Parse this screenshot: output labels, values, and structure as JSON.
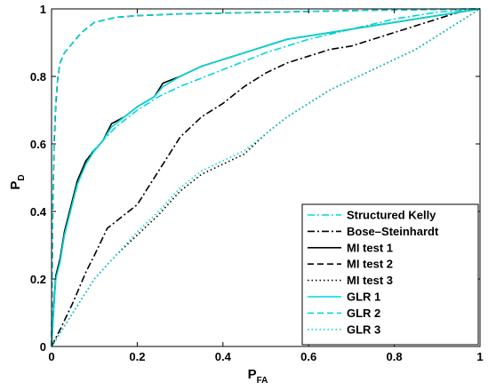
{
  "chart_data": {
    "type": "line",
    "title": "",
    "xlabel": {
      "main": "P",
      "sub": "FA"
    },
    "ylabel": {
      "main": "P",
      "sub": "D"
    },
    "xlim": [
      0,
      1
    ],
    "ylim": [
      0,
      1
    ],
    "xticks": [
      "0",
      "0.2",
      "0.4",
      "0.6",
      "0.8",
      "1"
    ],
    "yticks": [
      "0",
      "0.2",
      "0.4",
      "0.6",
      "0.8",
      "1"
    ],
    "grid": false,
    "legend_position": "bottom-right",
    "series": [
      {
        "name": "Structured Kelly",
        "color": "#00d8d8",
        "dash": "dashdot",
        "points": [
          [
            0,
            0
          ],
          [
            0.005,
            0.1
          ],
          [
            0.01,
            0.2
          ],
          [
            0.02,
            0.26
          ],
          [
            0.03,
            0.33
          ],
          [
            0.05,
            0.43
          ],
          [
            0.07,
            0.52
          ],
          [
            0.09,
            0.57
          ],
          [
            0.12,
            0.61
          ],
          [
            0.15,
            0.65
          ],
          [
            0.2,
            0.7
          ],
          [
            0.25,
            0.74
          ],
          [
            0.3,
            0.77
          ],
          [
            0.4,
            0.82
          ],
          [
            0.5,
            0.87
          ],
          [
            0.6,
            0.91
          ],
          [
            0.7,
            0.94
          ],
          [
            0.8,
            0.97
          ],
          [
            0.9,
            0.99
          ],
          [
            1,
            1
          ]
        ]
      },
      {
        "name": "Bose–Steinhardt",
        "color": "#000000",
        "dash": "dashdot",
        "points": [
          [
            0,
            0
          ],
          [
            0.02,
            0.05
          ],
          [
            0.05,
            0.13
          ],
          [
            0.08,
            0.22
          ],
          [
            0.1,
            0.27
          ],
          [
            0.13,
            0.35
          ],
          [
            0.17,
            0.39
          ],
          [
            0.2,
            0.42
          ],
          [
            0.22,
            0.46
          ],
          [
            0.25,
            0.52
          ],
          [
            0.28,
            0.58
          ],
          [
            0.3,
            0.62
          ],
          [
            0.35,
            0.68
          ],
          [
            0.4,
            0.72
          ],
          [
            0.45,
            0.77
          ],
          [
            0.5,
            0.81
          ],
          [
            0.55,
            0.84
          ],
          [
            0.6,
            0.86
          ],
          [
            0.65,
            0.88
          ],
          [
            0.7,
            0.89
          ],
          [
            0.75,
            0.91
          ],
          [
            0.8,
            0.93
          ],
          [
            0.85,
            0.95
          ],
          [
            0.9,
            0.97
          ],
          [
            0.95,
            0.99
          ],
          [
            1,
            1
          ]
        ]
      },
      {
        "name": "MI test 1",
        "color": "#000000",
        "dash": "solid",
        "points": [
          [
            0,
            0
          ],
          [
            0.005,
            0.12
          ],
          [
            0.01,
            0.21
          ],
          [
            0.02,
            0.26
          ],
          [
            0.03,
            0.34
          ],
          [
            0.04,
            0.39
          ],
          [
            0.05,
            0.44
          ],
          [
            0.06,
            0.49
          ],
          [
            0.08,
            0.55
          ],
          [
            0.1,
            0.58
          ],
          [
            0.12,
            0.61
          ],
          [
            0.14,
            0.66
          ],
          [
            0.17,
            0.68
          ],
          [
            0.2,
            0.71
          ],
          [
            0.24,
            0.74
          ],
          [
            0.26,
            0.78
          ],
          [
            0.3,
            0.8
          ],
          [
            0.35,
            0.83
          ],
          [
            0.4,
            0.85
          ],
          [
            0.45,
            0.87
          ],
          [
            0.5,
            0.89
          ],
          [
            0.55,
            0.91
          ],
          [
            0.6,
            0.92
          ],
          [
            0.7,
            0.94
          ],
          [
            0.8,
            0.96
          ],
          [
            0.9,
            0.98
          ],
          [
            1,
            1
          ]
        ]
      },
      {
        "name": "MI test 2",
        "color": "#000000",
        "dash": "dashed",
        "points": [
          [
            0,
            0
          ],
          [
            0.003,
            0.4
          ],
          [
            0.006,
            0.6
          ],
          [
            0.01,
            0.72
          ],
          [
            0.015,
            0.8
          ],
          [
            0.02,
            0.84
          ],
          [
            0.03,
            0.87
          ],
          [
            0.05,
            0.9
          ],
          [
            0.07,
            0.93
          ],
          [
            0.1,
            0.96
          ],
          [
            0.15,
            0.975
          ],
          [
            0.2,
            0.98
          ],
          [
            0.3,
            0.985
          ],
          [
            0.5,
            0.99
          ],
          [
            0.7,
            0.995
          ],
          [
            1,
            1
          ]
        ]
      },
      {
        "name": "MI test 3",
        "color": "#000000",
        "dash": "dotted",
        "points": [
          [
            0,
            0
          ],
          [
            0.03,
            0.06
          ],
          [
            0.06,
            0.12
          ],
          [
            0.1,
            0.2
          ],
          [
            0.15,
            0.27
          ],
          [
            0.2,
            0.33
          ],
          [
            0.25,
            0.39
          ],
          [
            0.3,
            0.46
          ],
          [
            0.35,
            0.51
          ],
          [
            0.4,
            0.54
          ],
          [
            0.45,
            0.57
          ],
          [
            0.5,
            0.63
          ],
          [
            0.55,
            0.68
          ],
          [
            0.6,
            0.72
          ],
          [
            0.65,
            0.76
          ],
          [
            0.7,
            0.79
          ],
          [
            0.75,
            0.82
          ],
          [
            0.8,
            0.85
          ],
          [
            0.85,
            0.88
          ],
          [
            0.9,
            0.92
          ],
          [
            0.95,
            0.96
          ],
          [
            1,
            1
          ]
        ]
      },
      {
        "name": "GLR 1",
        "color": "#00d8d8",
        "dash": "solid",
        "points": [
          [
            0,
            0
          ],
          [
            0.005,
            0.11
          ],
          [
            0.01,
            0.2
          ],
          [
            0.02,
            0.25
          ],
          [
            0.03,
            0.33
          ],
          [
            0.04,
            0.38
          ],
          [
            0.05,
            0.43
          ],
          [
            0.06,
            0.48
          ],
          [
            0.08,
            0.54
          ],
          [
            0.1,
            0.58
          ],
          [
            0.12,
            0.61
          ],
          [
            0.14,
            0.65
          ],
          [
            0.17,
            0.68
          ],
          [
            0.2,
            0.71
          ],
          [
            0.24,
            0.74
          ],
          [
            0.26,
            0.77
          ],
          [
            0.3,
            0.8
          ],
          [
            0.35,
            0.83
          ],
          [
            0.4,
            0.85
          ],
          [
            0.45,
            0.87
          ],
          [
            0.5,
            0.89
          ],
          [
            0.55,
            0.91
          ],
          [
            0.6,
            0.92
          ],
          [
            0.7,
            0.94
          ],
          [
            0.8,
            0.96
          ],
          [
            0.9,
            0.98
          ],
          [
            1,
            1
          ]
        ]
      },
      {
        "name": "GLR 2",
        "color": "#00d8d8",
        "dash": "dashed",
        "points": [
          [
            0,
            0
          ],
          [
            0.003,
            0.42
          ],
          [
            0.006,
            0.62
          ],
          [
            0.01,
            0.73
          ],
          [
            0.015,
            0.8
          ],
          [
            0.02,
            0.84
          ],
          [
            0.03,
            0.87
          ],
          [
            0.05,
            0.9
          ],
          [
            0.07,
            0.93
          ],
          [
            0.1,
            0.96
          ],
          [
            0.15,
            0.975
          ],
          [
            0.2,
            0.98
          ],
          [
            0.3,
            0.985
          ],
          [
            0.5,
            0.99
          ],
          [
            0.7,
            0.995
          ],
          [
            1,
            1
          ]
        ]
      },
      {
        "name": "GLR 3",
        "color": "#00d8d8",
        "dash": "dotted",
        "points": [
          [
            0,
            0
          ],
          [
            0.03,
            0.06
          ],
          [
            0.06,
            0.12
          ],
          [
            0.1,
            0.2
          ],
          [
            0.15,
            0.27
          ],
          [
            0.2,
            0.34
          ],
          [
            0.25,
            0.4
          ],
          [
            0.3,
            0.47
          ],
          [
            0.35,
            0.52
          ],
          [
            0.4,
            0.55
          ],
          [
            0.45,
            0.58
          ],
          [
            0.5,
            0.63
          ],
          [
            0.55,
            0.68
          ],
          [
            0.6,
            0.72
          ],
          [
            0.65,
            0.76
          ],
          [
            0.7,
            0.79
          ],
          [
            0.75,
            0.82
          ],
          [
            0.8,
            0.85
          ],
          [
            0.85,
            0.88
          ],
          [
            0.9,
            0.92
          ],
          [
            0.95,
            0.96
          ],
          [
            1,
            1
          ]
        ]
      }
    ]
  }
}
